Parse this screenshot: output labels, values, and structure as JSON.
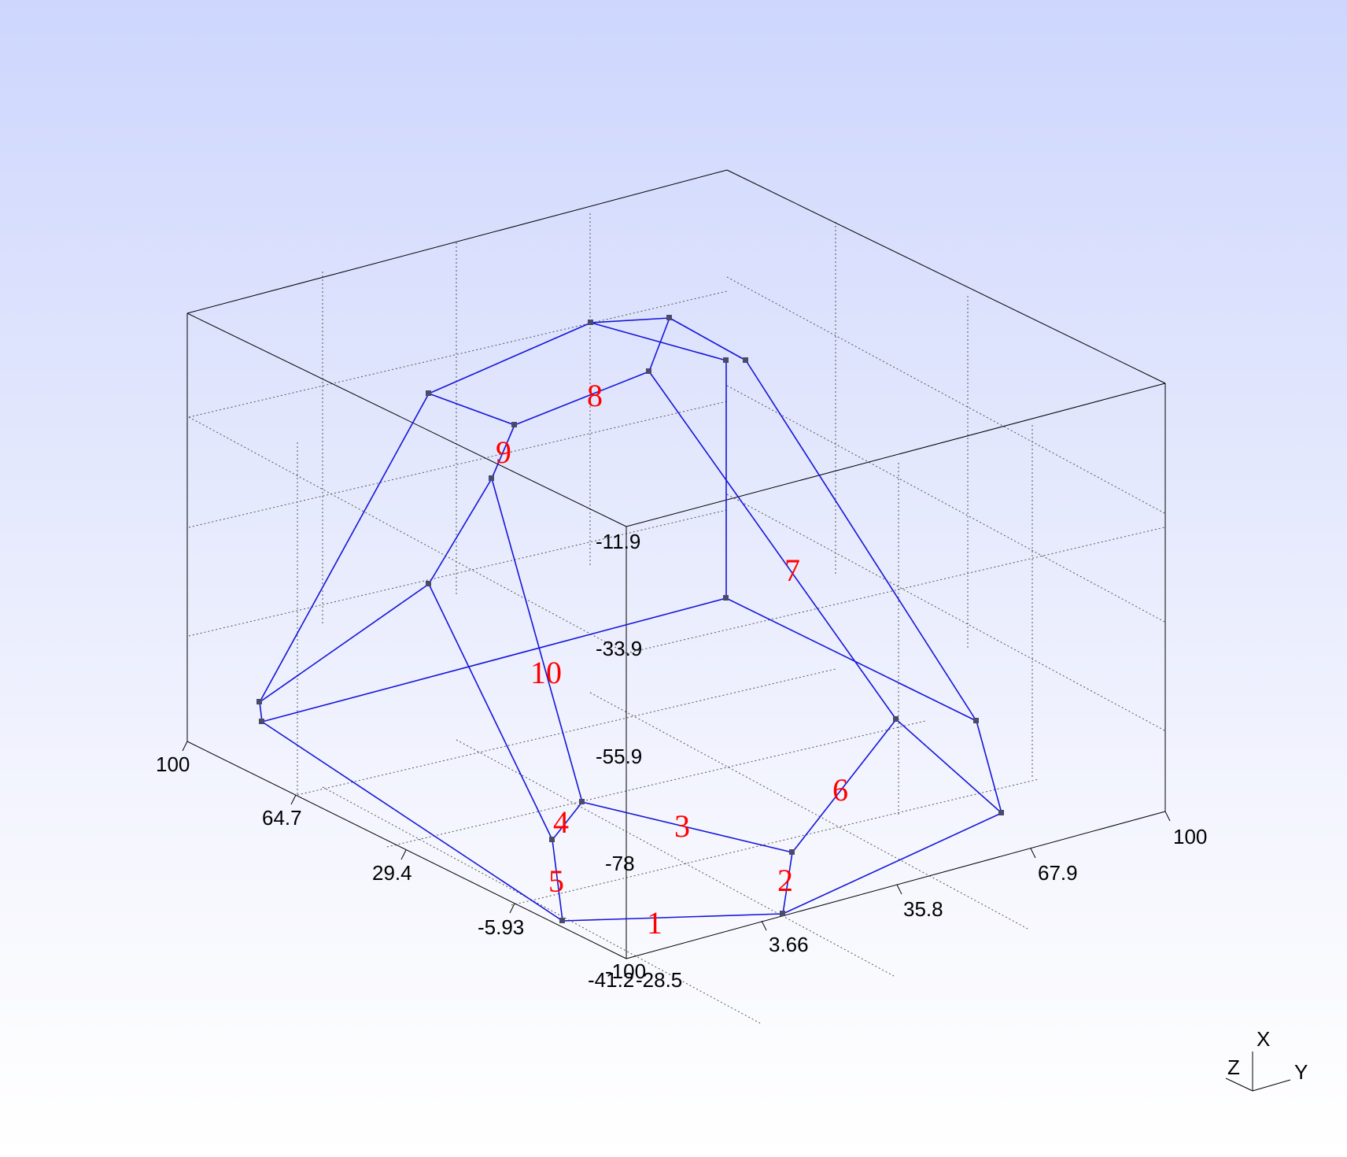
{
  "viewer": {
    "background_top": "#cdd6fd",
    "background_bottom": "#ffffff"
  },
  "colors": {
    "box": "#000000",
    "grid": "#555555",
    "member": "#1515d8",
    "node": "#4a4a6a",
    "label": "#ff0000"
  },
  "tick_labels": {
    "x_axis": [
      "100",
      "64.7",
      "29.4",
      "-5.93",
      "-41.2"
    ],
    "y_axis": [
      "-28.5",
      "3.66",
      "35.8",
      "67.9",
      "100"
    ],
    "z_axis": [
      "-11.9",
      "-33.9",
      "-55.9",
      "-78",
      "-100"
    ]
  },
  "members": [
    {
      "id": "1",
      "label": "1"
    },
    {
      "id": "2",
      "label": "2"
    },
    {
      "id": "3",
      "label": "3"
    },
    {
      "id": "4",
      "label": "4"
    },
    {
      "id": "5",
      "label": "5"
    },
    {
      "id": "6",
      "label": "6"
    },
    {
      "id": "7",
      "label": "7"
    },
    {
      "id": "8",
      "label": "8"
    },
    {
      "id": "9",
      "label": "9"
    },
    {
      "id": "10",
      "label": "10"
    }
  ],
  "triad": {
    "x": "X",
    "y": "Y",
    "z": "Z"
  }
}
